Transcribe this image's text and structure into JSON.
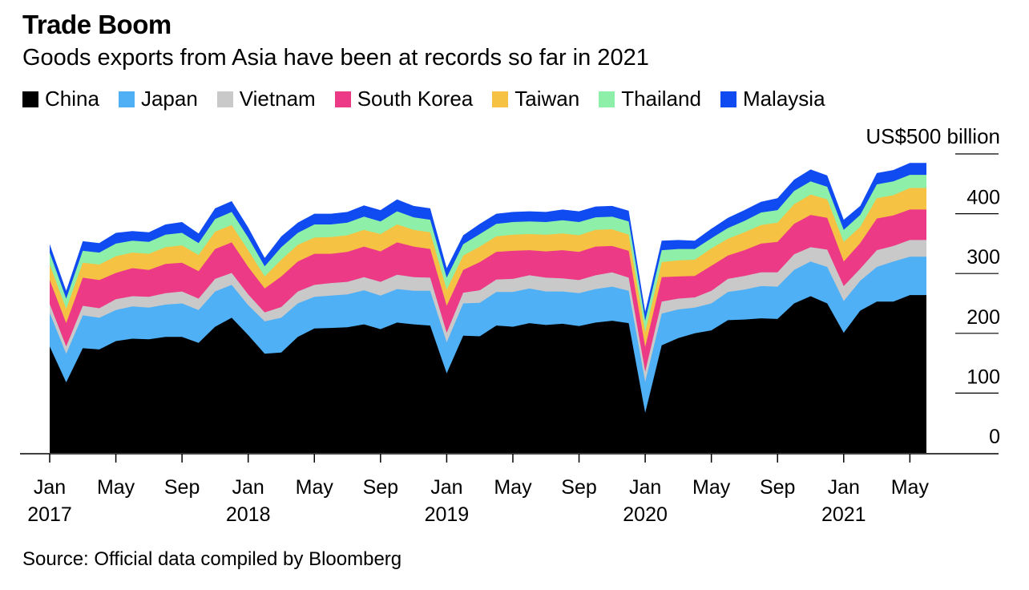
{
  "title": "Trade Boom",
  "subtitle": "Goods exports from Asia have been at records so far in 2021",
  "unit_label": "US$500 billion",
  "source": "Source: Official data compiled by Bloomberg",
  "chart_data": {
    "type": "area",
    "stacked": true,
    "x_start": "2017-01",
    "x_end": "2021-06",
    "x": [
      "Jan 2017",
      "Feb 2017",
      "Mar 2017",
      "Apr 2017",
      "May 2017",
      "Jun 2017",
      "Jul 2017",
      "Aug 2017",
      "Sep 2017",
      "Oct 2017",
      "Nov 2017",
      "Dec 2017",
      "Jan 2018",
      "Feb 2018",
      "Mar 2018",
      "Apr 2018",
      "May 2018",
      "Jun 2018",
      "Jul 2018",
      "Aug 2018",
      "Sep 2018",
      "Oct 2018",
      "Nov 2018",
      "Dec 2018",
      "Jan 2019",
      "Feb 2019",
      "Mar 2019",
      "Apr 2019",
      "May 2019",
      "Jun 2019",
      "Jul 2019",
      "Aug 2019",
      "Sep 2019",
      "Oct 2019",
      "Nov 2019",
      "Dec 2019",
      "Jan 2020",
      "Feb 2020",
      "Mar 2020",
      "Apr 2020",
      "May 2020",
      "Jun 2020",
      "Jul 2020",
      "Aug 2020",
      "Sep 2020",
      "Oct 2020",
      "Nov 2020",
      "Dec 2020",
      "Jan 2021",
      "Feb 2021",
      "Mar 2021",
      "Apr 2021",
      "May 2021",
      "Jun 2021"
    ],
    "series": [
      {
        "name": "China",
        "color": "#000000",
        "values": [
          178,
          118,
          175,
          173,
          187,
          191,
          190,
          194,
          194,
          184,
          211,
          226,
          197,
          166,
          168,
          194,
          208,
          209,
          210,
          215,
          207,
          218,
          215,
          213,
          133,
          196,
          195,
          213,
          211,
          217,
          214,
          216,
          212,
          218,
          221,
          217,
          67,
          180,
          192,
          200,
          205,
          222,
          223,
          225,
          224,
          250,
          262,
          250,
          201,
          238,
          253,
          253,
          264,
          264
        ]
      },
      {
        "name": "Japan",
        "color": "#4fb0f5",
        "values": [
          56,
          48,
          55,
          53,
          52,
          54,
          53,
          54,
          56,
          55,
          59,
          55,
          50,
          54,
          58,
          56,
          53,
          54,
          55,
          57,
          56,
          56,
          56,
          58,
          52,
          54,
          56,
          56,
          58,
          58,
          56,
          54,
          55,
          56,
          57,
          54,
          52,
          53,
          48,
          43,
          45,
          47,
          50,
          54,
          54,
          56,
          58,
          61,
          53,
          50,
          58,
          67,
          64,
          64
        ]
      },
      {
        "name": "Vietnam",
        "color": "#c9c9c9",
        "values": [
          15,
          12,
          16,
          16,
          18,
          17,
          18,
          19,
          20,
          19,
          21,
          20,
          18,
          15,
          18,
          20,
          20,
          21,
          21,
          22,
          23,
          24,
          23,
          22,
          16,
          18,
          21,
          21,
          22,
          22,
          23,
          22,
          22,
          23,
          24,
          22,
          17,
          20,
          18,
          17,
          21,
          22,
          23,
          23,
          24,
          26,
          24,
          29,
          25,
          20,
          28,
          26,
          28,
          28
        ]
      },
      {
        "name": "South Korea",
        "color": "#ec3a86",
        "values": [
          40,
          39,
          47,
          47,
          44,
          47,
          45,
          49,
          48,
          46,
          50,
          51,
          46,
          40,
          51,
          50,
          52,
          49,
          50,
          51,
          51,
          54,
          51,
          48,
          45,
          38,
          47,
          46,
          47,
          42,
          44,
          47,
          47,
          48,
          44,
          45,
          41,
          41,
          37,
          36,
          42,
          39,
          43,
          48,
          51,
          51,
          54,
          53,
          41,
          43,
          53,
          51,
          51,
          51
        ]
      },
      {
        "name": "Taiwan",
        "color": "#f5c243",
        "values": [
          26,
          24,
          25,
          26,
          28,
          26,
          27,
          28,
          29,
          27,
          29,
          29,
          28,
          20,
          28,
          28,
          27,
          28,
          28,
          28,
          29,
          30,
          28,
          28,
          27,
          24,
          26,
          26,
          27,
          27,
          28,
          28,
          28,
          28,
          28,
          27,
          25,
          25,
          27,
          27,
          29,
          28,
          30,
          31,
          32,
          33,
          34,
          31,
          33,
          27,
          34,
          34,
          36,
          36
        ]
      },
      {
        "name": "Thailand",
        "color": "#8ef0a8",
        "values": [
          20,
          17,
          20,
          20,
          21,
          20,
          20,
          21,
          21,
          20,
          21,
          22,
          21,
          17,
          21,
          20,
          22,
          21,
          21,
          22,
          21,
          22,
          21,
          21,
          20,
          19,
          21,
          21,
          21,
          21,
          21,
          22,
          22,
          21,
          21,
          22,
          19,
          20,
          19,
          18,
          17,
          18,
          19,
          21,
          21,
          22,
          22,
          21,
          20,
          20,
          23,
          23,
          22,
          22
        ]
      },
      {
        "name": "Malaysia",
        "color": "#0f4bf0",
        "values": [
          14,
          13,
          16,
          16,
          18,
          16,
          16,
          17,
          18,
          16,
          18,
          18,
          17,
          14,
          18,
          17,
          18,
          18,
          18,
          19,
          19,
          20,
          19,
          19,
          16,
          15,
          17,
          17,
          17,
          17,
          17,
          18,
          18,
          18,
          18,
          18,
          15,
          16,
          15,
          14,
          16,
          17,
          18,
          18,
          20,
          19,
          20,
          19,
          17,
          15,
          19,
          19,
          20,
          20
        ]
      }
    ],
    "y_ticks": [
      "0",
      "100",
      "200",
      "300",
      "400"
    ],
    "y_top_label": "US$500 billion",
    "ylim": [
      0,
      500
    ],
    "x_tick_labels": [
      {
        "index": 0,
        "month": "Jan",
        "year": "2017"
      },
      {
        "index": 4,
        "month": "May",
        "year": ""
      },
      {
        "index": 8,
        "month": "Sep",
        "year": ""
      },
      {
        "index": 12,
        "month": "Jan",
        "year": "2018"
      },
      {
        "index": 16,
        "month": "May",
        "year": ""
      },
      {
        "index": 20,
        "month": "Sep",
        "year": ""
      },
      {
        "index": 24,
        "month": "Jan",
        "year": "2019"
      },
      {
        "index": 28,
        "month": "May",
        "year": ""
      },
      {
        "index": 32,
        "month": "Sep",
        "year": ""
      },
      {
        "index": 36,
        "month": "Jan",
        "year": "2020"
      },
      {
        "index": 40,
        "month": "May",
        "year": ""
      },
      {
        "index": 44,
        "month": "Sep",
        "year": ""
      },
      {
        "index": 48,
        "month": "Jan",
        "year": "2021"
      },
      {
        "index": 52,
        "month": "May",
        "year": ""
      }
    ],
    "legend_position": "top-left",
    "grid": false
  }
}
